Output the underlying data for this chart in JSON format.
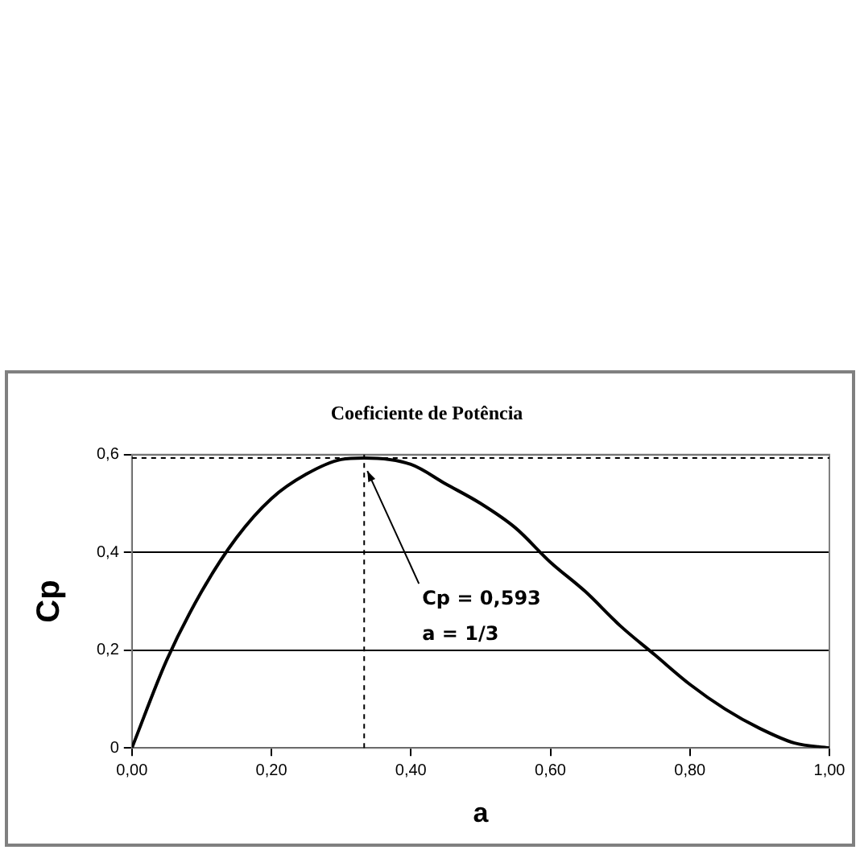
{
  "chart_data": {
    "type": "line",
    "title": "Coeficiente de Potência",
    "xlabel": "a",
    "ylabel": "Cp",
    "x": [
      0,
      0.05,
      0.1,
      0.15,
      0.2,
      0.25,
      0.3,
      0.333,
      0.4,
      0.45,
      0.5,
      0.55,
      0.6,
      0.65,
      0.7,
      0.75,
      0.8,
      0.85,
      0.9,
      0.95,
      1
    ],
    "series": [
      {
        "color": "#000000",
        "values": [
          0,
          0.18,
          0.32,
          0.43,
          0.51,
          0.56,
          0.59,
          0.593,
          0.58,
          0.54,
          0.5,
          0.45,
          0.38,
          0.32,
          0.25,
          0.19,
          0.13,
          0.08,
          0.04,
          0.01,
          0
        ]
      }
    ],
    "xlim": [
      0,
      1
    ],
    "xticks": [
      {
        "value": 0,
        "label": "0,00"
      },
      {
        "value": 0.2,
        "label": "0,20"
      },
      {
        "value": 0.4,
        "label": "0,40"
      },
      {
        "value": 0.6,
        "label": "0,60"
      },
      {
        "value": 0.8,
        "label": "0,80"
      },
      {
        "value": 1,
        "label": "1,00"
      }
    ],
    "ylim": [
      0,
      0.6
    ],
    "yticks": [
      0,
      {
        "value": 0.2,
        "label": "0,2"
      },
      {
        "value": 0.4,
        "label": "0,4"
      },
      {
        "value": 0.6,
        "label": "0,6"
      }
    ],
    "grid": "y",
    "legend": false,
    "marker": "none",
    "line_style": "solid",
    "ref_lines": [
      {
        "axis": "x",
        "value": 0.333,
        "color": "#000000",
        "line_style": "dashed"
      },
      {
        "axis": "y",
        "value": 0.593,
        "color": "#000000",
        "line_style": "dashed"
      }
    ],
    "annotations": [
      {
        "text": "Cp = 0,593\na = 1/3",
        "x": 0.333,
        "y": 0.593
      }
    ]
  }
}
